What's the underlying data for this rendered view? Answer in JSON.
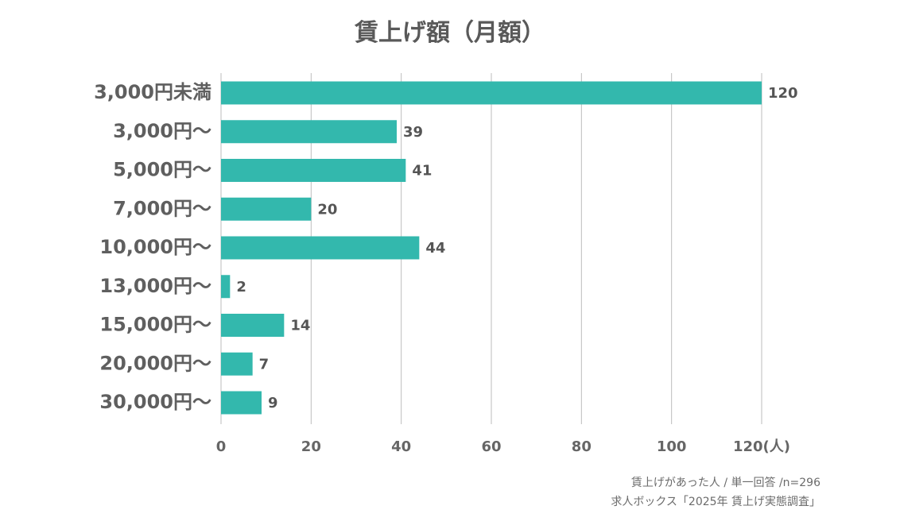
{
  "chart_data": {
    "type": "bar",
    "orientation": "horizontal",
    "title": "賃上げ額（月額）",
    "categories": [
      "3,000円未満",
      "3,000円〜",
      "5,000円〜",
      "7,000円〜",
      "10,000円〜",
      "13,000円〜",
      "15,000円〜",
      "20,000円〜",
      "30,000円〜"
    ],
    "values": [
      120,
      39,
      41,
      20,
      44,
      2,
      14,
      7,
      9
    ],
    "value_labels": [
      "120",
      "39",
      "41",
      "20",
      "44",
      "2",
      "14",
      "7",
      "9"
    ],
    "x_ticks": [
      0,
      20,
      40,
      60,
      80,
      100,
      120
    ],
    "x_tick_labels": [
      "0",
      "20",
      "40",
      "60",
      "80",
      "100",
      "120(人)"
    ],
    "xlim": [
      0,
      120
    ],
    "grid": "vertical",
    "legend": "none",
    "colors": {
      "bar": "#33b8ad",
      "grid": "#bdbdbd",
      "text": "#5f5f5f"
    }
  },
  "notes": {
    "sample": "賃上げがあった人 / 単一回答 /n=296",
    "source": "求人ボックス「2025年 賃上げ実態調査」"
  }
}
